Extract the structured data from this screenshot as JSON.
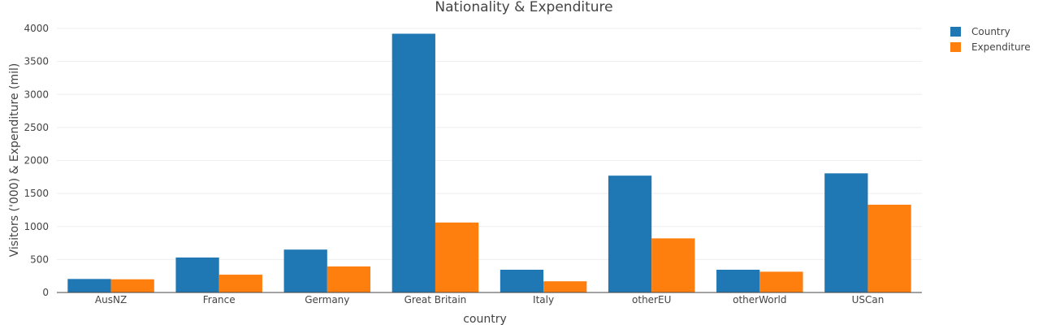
{
  "chart_data": {
    "type": "bar",
    "title": "Nationality & Expenditure",
    "xlabel": "country",
    "ylabel": "Visitors ('000) & Expenditure (mil)",
    "categories": [
      "AusNZ",
      "France",
      "Germany",
      "Great Britain",
      "Italy",
      "otherEU",
      "otherWorld",
      "USCan"
    ],
    "series": [
      {
        "name": "Country",
        "color": "#1f77b4",
        "values": [
          205,
          530,
          650,
          3920,
          345,
          1770,
          345,
          1805
        ]
      },
      {
        "name": "Expenditure",
        "color": "#ff7f0e",
        "values": [
          200,
          270,
          395,
          1060,
          170,
          820,
          315,
          1330
        ]
      }
    ],
    "ylim": [
      0,
      4000
    ],
    "yticks": [
      0,
      500,
      1000,
      1500,
      2000,
      2500,
      3000,
      3500,
      4000
    ],
    "grid": true,
    "legend_position": "top-right"
  }
}
